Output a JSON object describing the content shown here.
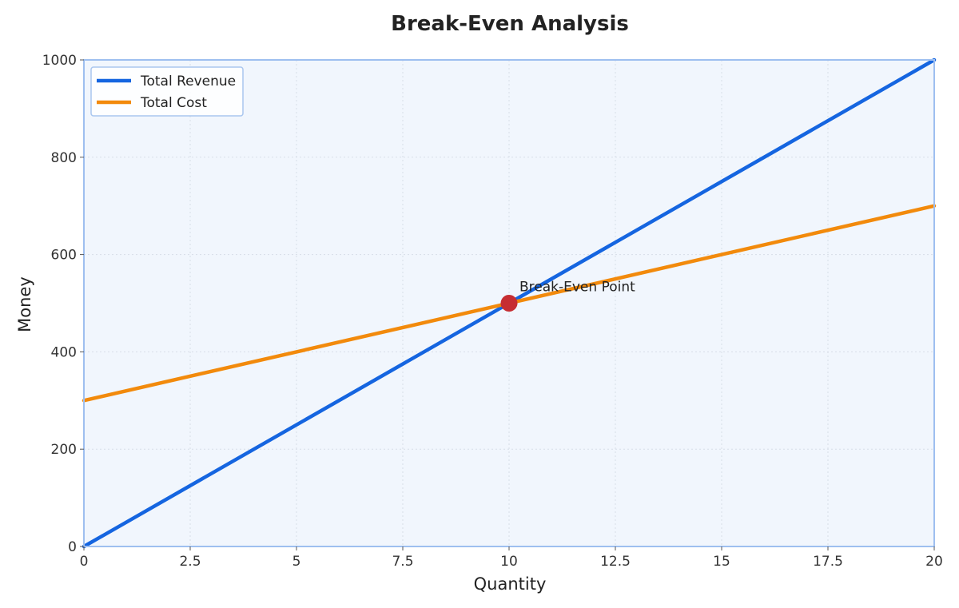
{
  "chart_data": {
    "type": "line",
    "title": "Break-Even Analysis",
    "xlabel": "Quantity",
    "ylabel": "Money",
    "xlim": [
      0,
      20
    ],
    "ylim": [
      0,
      1000
    ],
    "x_ticks": [
      0,
      2.5,
      5,
      7.5,
      10,
      12.5,
      15,
      17.5,
      20
    ],
    "x_tick_labels": [
      "0",
      "2.5",
      "5",
      "7.5",
      "10",
      "12.5",
      "15",
      "17.5",
      "20"
    ],
    "y_ticks": [
      0,
      200,
      400,
      600,
      800,
      1000
    ],
    "y_tick_labels": [
      "0",
      "200",
      "400",
      "600",
      "800",
      "1000"
    ],
    "grid": true,
    "legend_position": "top-left",
    "series": [
      {
        "name": "Total Revenue",
        "color": "#1565e0",
        "x": [
          0,
          20
        ],
        "y": [
          0,
          1000
        ]
      },
      {
        "name": "Total Cost",
        "color": "#f28a0c",
        "x": [
          0,
          20
        ],
        "y": [
          300,
          700
        ]
      }
    ],
    "annotations": [
      {
        "text": "Break-Even Point",
        "x": 10,
        "y": 500,
        "color": "#c62d32"
      }
    ],
    "colors": {
      "plot_background": "#f1f6fd",
      "plot_border": "#9ebff0"
    }
  }
}
